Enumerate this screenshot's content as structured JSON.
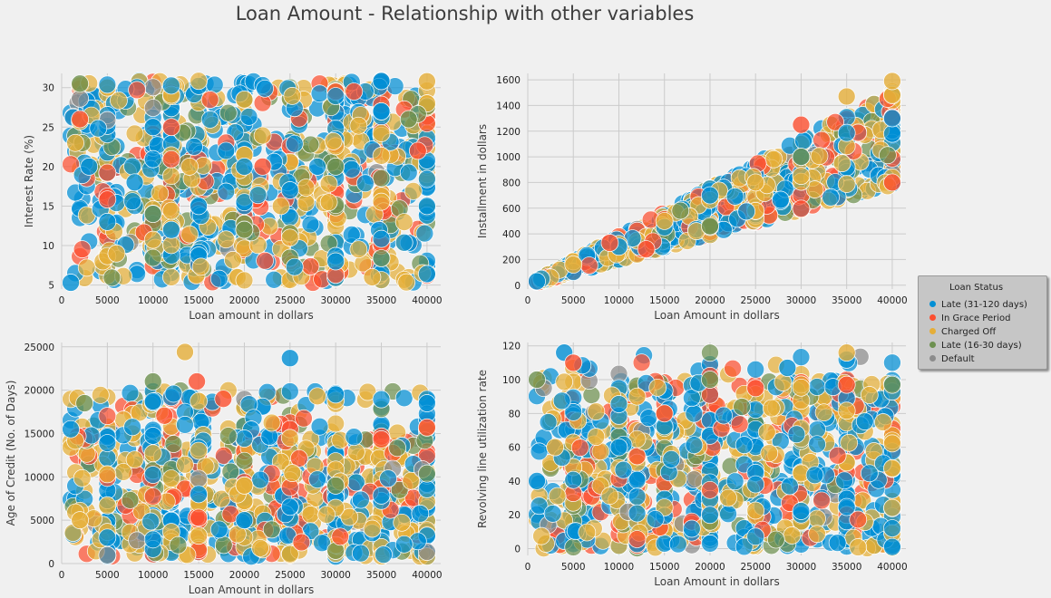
{
  "title": "Loan Amount - Relationship with other variables",
  "colors": {
    "background": "#f0f0f0",
    "grid": "#cbcbcb",
    "text": "#3c3c3c"
  },
  "legend": {
    "title": "Loan Status",
    "placement": "right",
    "items": [
      {
        "label": "Late (31-120 days)",
        "color": "#008fd5"
      },
      {
        "label": "In Grace Period",
        "color": "#fc4f30"
      },
      {
        "label": "Charged Off",
        "color": "#e5ae38"
      },
      {
        "label": "Late (16-30 days)",
        "color": "#6d904f"
      },
      {
        "label": "Default",
        "color": "#8b8b8b"
      }
    ]
  },
  "chart_data": [
    {
      "type": "scatter",
      "xlabel": "Loan amount in dollars",
      "ylabel": "Interest Rate (%)",
      "xlim": [
        0,
        41500
      ],
      "ylim": [
        4.5,
        31.8
      ],
      "xticks": [
        0,
        5000,
        10000,
        15000,
        20000,
        25000,
        30000,
        35000,
        40000
      ],
      "yticks": [
        5,
        10,
        15,
        20,
        25,
        30
      ],
      "grid": true,
      "description": "Dense cloud of points across x 1000-40000 and y 5.3-30.9 for all loan statuses",
      "sample_points": [
        {
          "status": "Late (31-120 days)",
          "x": [
            1000,
            3000,
            5000,
            8000,
            10000,
            12000,
            15000,
            18000,
            20000,
            25000,
            30000,
            35000,
            40000
          ],
          "y": [
            5.3,
            20,
            13,
            18,
            25,
            12,
            15,
            22,
            20,
            17,
            8,
            27,
            15
          ]
        },
        {
          "status": "In Grace Period",
          "x": [
            2000,
            12000,
            22000,
            32000,
            39000
          ],
          "y": [
            26,
            25,
            20,
            29.5,
            22
          ]
        },
        {
          "status": "Charged Off",
          "x": [
            1500,
            6000,
            14000,
            24000,
            34000,
            40000
          ],
          "y": [
            23,
            9,
            20,
            15,
            6,
            30.8
          ]
        },
        {
          "status": "Late (16-30 days)",
          "x": [
            2000,
            10000,
            20000,
            30000,
            38000
          ],
          "y": [
            30.5,
            14,
            12,
            20,
            26
          ]
        }
      ]
    },
    {
      "type": "scatter",
      "xlabel": "Loan Amount in dollars",
      "ylabel": "Installment in dollars",
      "xlim": [
        0,
        41500
      ],
      "ylim": [
        -30,
        1650
      ],
      "xticks": [
        0,
        5000,
        10000,
        15000,
        20000,
        25000,
        30000,
        35000,
        40000
      ],
      "yticks": [
        0,
        200,
        400,
        600,
        800,
        1000,
        1200,
        1400,
        1600
      ],
      "grid": true,
      "description": "Wedge-shaped positive relationship: installment between about 0.0195 and 0.038 of loan amount",
      "sample_points": [
        {
          "status": "Late (31-120 days)",
          "x": [
            1000,
            10000,
            20000,
            30000,
            40000
          ],
          "y": [
            30,
            300,
            700,
            1000,
            1300
          ]
        },
        {
          "status": "In Grace Period",
          "x": [
            9000,
            13000,
            30000,
            40000
          ],
          "y": [
            330,
            280,
            1250,
            800
          ]
        },
        {
          "status": "Charged Off",
          "x": [
            5000,
            15000,
            25000,
            35000,
            40000
          ],
          "y": [
            160,
            500,
            800,
            1470,
            1590
          ]
        },
        {
          "status": "Late (16-30 days)",
          "x": [
            20000,
            30000
          ],
          "y": [
            460,
            1000
          ]
        }
      ]
    },
    {
      "type": "scatter",
      "xlabel": "Loan Amount in dollars",
      "ylabel": "Age of Credit (No. of Days)",
      "xlim": [
        0,
        41500
      ],
      "ylim": [
        0,
        25500
      ],
      "xticks": [
        0,
        5000,
        10000,
        15000,
        20000,
        25000,
        30000,
        35000,
        40000
      ],
      "yticks": [
        0,
        5000,
        10000,
        15000,
        20000,
        25000
      ],
      "grid": true,
      "description": "Most points between 1000 and 20000 days; outliers near 24400 at 13500 and 23700 at 25000",
      "sample_points": [
        {
          "status": "Late (31-120 days)",
          "x": [
            1000,
            5000,
            10000,
            15000,
            20000,
            25000,
            30000,
            40000
          ],
          "y": [
            15500,
            3000,
            18700,
            8000,
            5000,
            23700,
            19500,
            18500
          ]
        },
        {
          "status": "In Grace Period",
          "x": [
            14800,
            17700,
            40000
          ],
          "y": [
            21000,
            19000,
            15700
          ]
        },
        {
          "status": "Charged Off",
          "x": [
            2000,
            8000,
            13500,
            20000,
            28000
          ],
          "y": [
            5000,
            12000,
            24400,
            9000,
            19300
          ]
        },
        {
          "status": "Late (16-30 days)",
          "x": [
            2500,
            10000,
            30000
          ],
          "y": [
            18500,
            21000,
            9000
          ]
        }
      ]
    },
    {
      "type": "scatter",
      "xlabel": "Loan Amount in dollars",
      "ylabel": "Revolving line utilization rate",
      "xlim": [
        0,
        41500
      ],
      "ylim": [
        -4,
        122
      ],
      "xticks": [
        0,
        5000,
        10000,
        15000,
        20000,
        25000,
        30000,
        35000,
        40000
      ],
      "yticks": [
        0,
        20,
        40,
        60,
        80,
        100,
        120
      ],
      "grid": true,
      "description": "Points spread uniformly between 0 and 100; a few above 100 up to about 116",
      "sample_points": [
        {
          "status": "Late (31-120 days)",
          "x": [
            1000,
            4000,
            10000,
            20000,
            28500,
            40000
          ],
          "y": [
            40,
            116,
            60,
            20,
            107,
            1
          ]
        },
        {
          "status": "In Grace Period",
          "x": [
            5000,
            15000,
            25000,
            35000
          ],
          "y": [
            110,
            80,
            95,
            97
          ]
        },
        {
          "status": "Charged Off",
          "x": [
            3000,
            12000,
            22000,
            35000
          ],
          "y": [
            60,
            90,
            30,
            116
          ]
        },
        {
          "status": "Late (16-30 days)",
          "x": [
            1000,
            20000,
            40000
          ],
          "y": [
            100,
            100,
            97
          ]
        }
      ]
    }
  ]
}
